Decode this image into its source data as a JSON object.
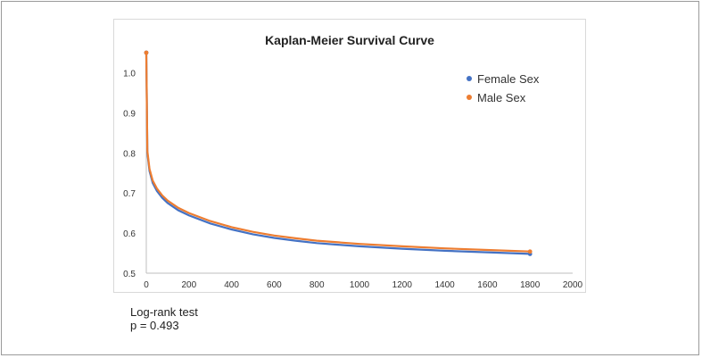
{
  "chart_data": {
    "type": "line",
    "title": "Kaplan-Meier Survival Curve",
    "xlabel": "",
    "ylabel": "",
    "xlim": [
      0,
      2000
    ],
    "ylim": [
      0.5,
      1.05
    ],
    "x_ticks": [
      "0",
      "200",
      "400",
      "600",
      "800",
      "1000",
      "1200",
      "1400",
      "1600",
      "1800",
      "2000"
    ],
    "y_ticks": [
      "0.5",
      "0.6",
      "0.7",
      "0.8",
      "0.9",
      "1.0"
    ],
    "grid": false,
    "legend_position": "top-right",
    "series": [
      {
        "name": "Female Sex",
        "color": "#4472C4",
        "points": [
          [
            0,
            1.05
          ],
          [
            5,
            0.8
          ],
          [
            15,
            0.755
          ],
          [
            30,
            0.725
          ],
          [
            50,
            0.705
          ],
          [
            75,
            0.688
          ],
          [
            100,
            0.675
          ],
          [
            150,
            0.657
          ],
          [
            200,
            0.644
          ],
          [
            300,
            0.624
          ],
          [
            400,
            0.609
          ],
          [
            500,
            0.597
          ],
          [
            600,
            0.588
          ],
          [
            700,
            0.581
          ],
          [
            800,
            0.575
          ],
          [
            900,
            0.571
          ],
          [
            1000,
            0.567
          ],
          [
            1200,
            0.561
          ],
          [
            1400,
            0.556
          ],
          [
            1600,
            0.552
          ],
          [
            1800,
            0.548
          ]
        ]
      },
      {
        "name": "Male Sex",
        "color": "#ED7D31",
        "points": [
          [
            0,
            1.05
          ],
          [
            5,
            0.805
          ],
          [
            15,
            0.76
          ],
          [
            30,
            0.731
          ],
          [
            50,
            0.711
          ],
          [
            75,
            0.694
          ],
          [
            100,
            0.681
          ],
          [
            150,
            0.663
          ],
          [
            200,
            0.65
          ],
          [
            300,
            0.63
          ],
          [
            400,
            0.615
          ],
          [
            500,
            0.603
          ],
          [
            600,
            0.594
          ],
          [
            700,
            0.587
          ],
          [
            800,
            0.581
          ],
          [
            900,
            0.577
          ],
          [
            1000,
            0.573
          ],
          [
            1200,
            0.567
          ],
          [
            1400,
            0.562
          ],
          [
            1600,
            0.558
          ],
          [
            1800,
            0.554
          ]
        ]
      }
    ]
  },
  "notes": {
    "line1": "Log-rank test",
    "line2": "p = 0.493"
  }
}
